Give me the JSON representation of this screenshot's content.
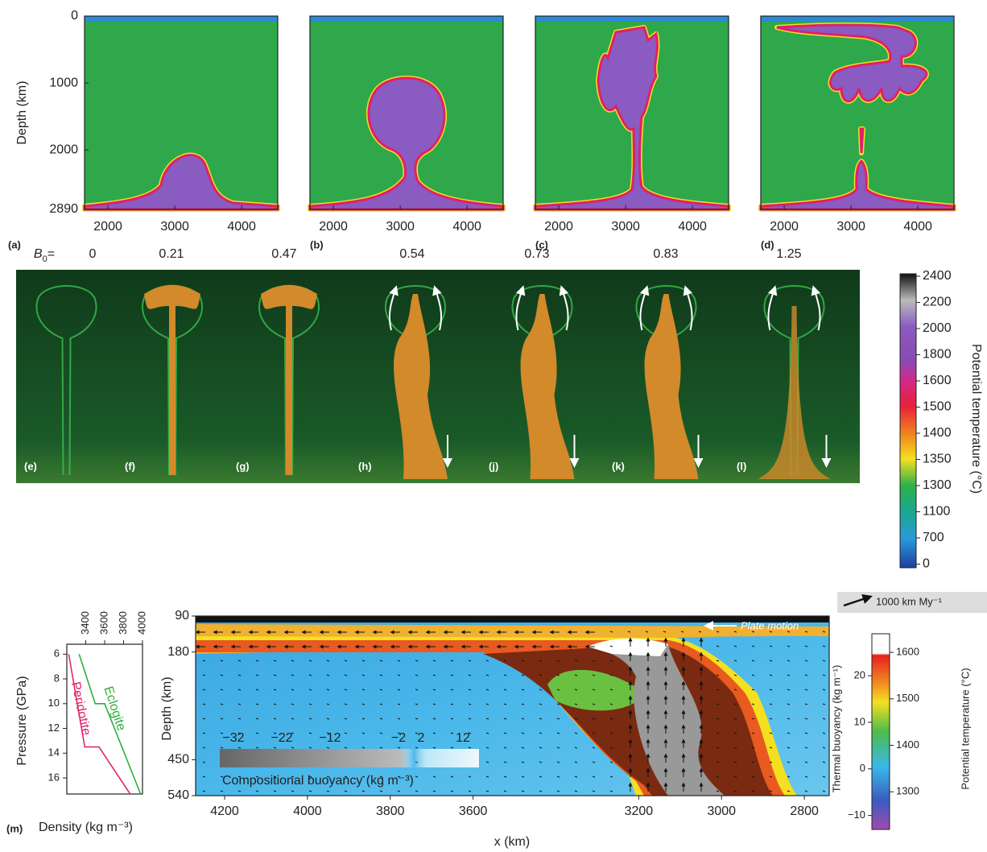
{
  "top_panels": {
    "y_label": "Depth (km)",
    "ylim": [
      0,
      2890
    ],
    "yticks": [
      0,
      1000,
      2000,
      2890
    ],
    "xlim": [
      1650,
      4540
    ],
    "xticks": [
      2000,
      3000,
      4000
    ],
    "panels": [
      "(a)",
      "(b)",
      "(c)",
      "(d)"
    ]
  },
  "colorbar": {
    "label": "Potential temperature (°C)",
    "ticks": [
      2400,
      2200,
      2000,
      1800,
      1600,
      1500,
      1400,
      1350,
      1300,
      1100,
      700,
      0
    ]
  },
  "experiments": {
    "b0_symbol": "B",
    "b0_subscript": "0",
    "b0_equals": "=",
    "b0": [
      0,
      0.21,
      0.47,
      0.54,
      0.73,
      0.83,
      1.25
    ],
    "panels": [
      "(e)",
      "(f)",
      "(g)",
      "(h)",
      "(j)",
      "(k)",
      "(l)"
    ]
  },
  "panel_m": {
    "label": "(m)",
    "x_label": "Density (kg m⁻³)",
    "y_label": "Pressure (GPa)",
    "xlim": [
      3200,
      4000
    ],
    "xticks": [
      3400,
      3600,
      3800,
      4000
    ],
    "ylim": [
      5.2,
      17.3
    ],
    "yticks": [
      6,
      8,
      10,
      12,
      14,
      16
    ],
    "series": [
      {
        "name": "Peridotite",
        "color": "#e0266e",
        "x": [
          3220,
          3390,
          3540,
          3870
        ],
        "y": [
          6,
          13.5,
          13.5,
          17.3
        ]
      },
      {
        "name": "Eclogite",
        "color": "#2fae3e",
        "x": [
          3330,
          3500,
          3600,
          3980
        ],
        "y": [
          6,
          10,
          10,
          17.3
        ]
      }
    ]
  },
  "main_panel": {
    "x_label": "x (km)",
    "y_label": "Depth (km)",
    "xlim": [
      4270,
      2740
    ],
    "xticks": [
      4200,
      4000,
      3800,
      3600,
      3200,
      3000,
      2800
    ],
    "ylim": [
      90,
      540
    ],
    "yticks": [
      90,
      180,
      450,
      540
    ],
    "plate_motion": "Plate motion",
    "velocity_scale": "1000 km My⁻¹",
    "compositional": {
      "label": "Compositional buoyancy (kg m⁻³)",
      "ticks": [
        {
          "value": -32,
          "label": "−32"
        },
        {
          "value": -22,
          "label": "−22"
        },
        {
          "value": -12,
          "label": "−12"
        },
        {
          "value": -2,
          "label": "−2"
        },
        2,
        12
      ]
    }
  },
  "buoyancy_colorbar": {
    "thermal_label": "Thermal buoyancy (kg m⁻¹)",
    "thermal_ylim": [
      29,
      -13
    ],
    "thermal_ticks": [
      20,
      10,
      0,
      {
        "value": -10,
        "label": "−10"
      }
    ],
    "temperature_label": "Potential temperature (°C)",
    "temperature_ylim": [
      1640,
      1219
    ],
    "temperature_ticks": [
      1600,
      1500,
      1400,
      1300
    ]
  }
}
